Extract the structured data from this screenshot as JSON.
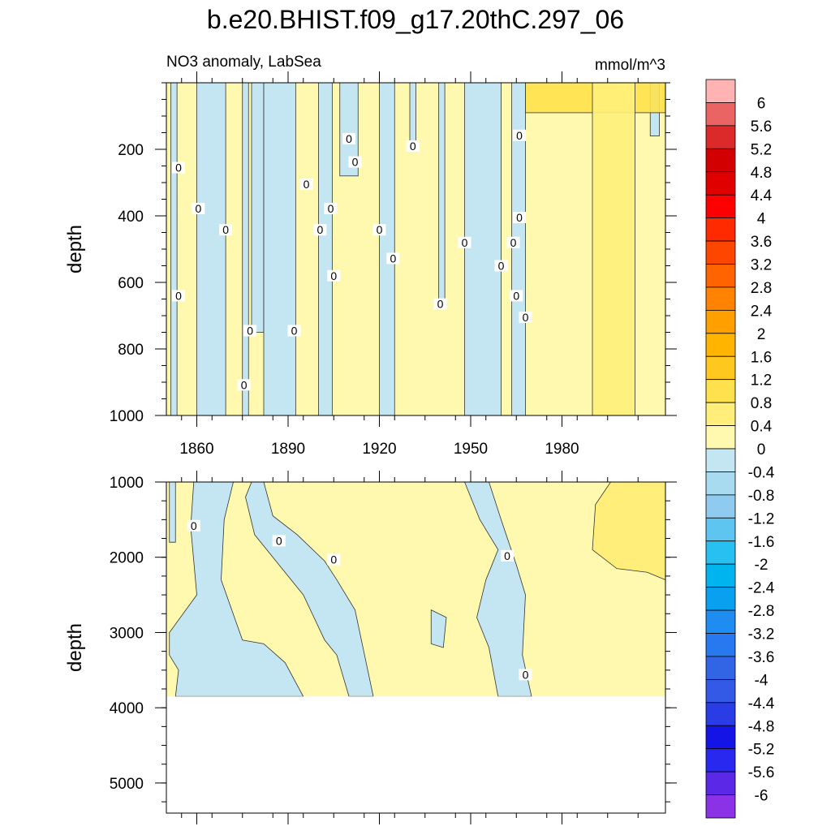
{
  "chart_data": {
    "type": "contour",
    "title": "b.e20.BHIST.f09_g17.20thC.297_06",
    "subtitle_left": "NO3 anomaly, LabSea",
    "units": "mmol/m^3",
    "colors": {
      "positive_low": "#fff9b0",
      "positive_mid": "#ffef7a",
      "positive_high": "#ffe14d",
      "negative_low": "#c4e6f2",
      "background": "#ffffff",
      "line": "#333333"
    },
    "panels": [
      {
        "name": "upper",
        "ylabel": "depth",
        "xlim": [
          1850,
          2014
        ],
        "ylim": [
          0,
          1000
        ],
        "yticks": [
          200,
          400,
          600,
          800,
          1000
        ],
        "xticks": [
          1860,
          1890,
          1920,
          1950,
          1980
        ],
        "xtick_labels": [
          "1860",
          "1890",
          "1920",
          "1950",
          "1980"
        ],
        "negative_regions": [
          {
            "x0": 1851.5,
            "x1": 1853.5,
            "ymax": 1000
          },
          {
            "x0": 1860,
            "x1": 1869.5,
            "ymax": 1000
          },
          {
            "x0": 1875,
            "x1": 1877,
            "ymax": 1000
          },
          {
            "x0": 1878,
            "x1": 1882,
            "ymax": 750
          },
          {
            "x0": 1882,
            "x1": 1892.5,
            "ymax": 1000
          },
          {
            "x0": 1900,
            "x1": 1904.5,
            "ymax": 1000
          },
          {
            "x0": 1907,
            "x1": 1913,
            "ymax": 280
          },
          {
            "x0": 1920,
            "x1": 1925,
            "ymax": 1000
          },
          {
            "x0": 1930,
            "x1": 1932,
            "ymax": 180
          },
          {
            "x0": 1939.5,
            "x1": 1941.5,
            "ymax": 680
          },
          {
            "x0": 1948,
            "x1": 1960,
            "ymax": 1000
          },
          {
            "x0": 1963.5,
            "x1": 1968,
            "ymax": 1000
          },
          {
            "x0": 2009,
            "x1": 2012,
            "ymax": 160
          }
        ],
        "positive_regions": [
          {
            "x0": 1968,
            "x1": 2014,
            "ymin": 0,
            "ymax": 90,
            "level": 0.8
          },
          {
            "x0": 1990,
            "x1": 2004,
            "ymin": 0,
            "ymax": 1000,
            "level": 0.4
          }
        ],
        "contour_labels": [
          {
            "x": 1854,
            "y": 255,
            "text": "0"
          },
          {
            "x": 1860.5,
            "y": 378,
            "text": "0"
          },
          {
            "x": 1854,
            "y": 640,
            "text": "0"
          },
          {
            "x": 1869.5,
            "y": 442,
            "text": "0"
          },
          {
            "x": 1877.5,
            "y": 745,
            "text": "0"
          },
          {
            "x": 1875.5,
            "y": 908,
            "text": "0"
          },
          {
            "x": 1892,
            "y": 745,
            "text": "0"
          },
          {
            "x": 1896,
            "y": 305,
            "text": "0"
          },
          {
            "x": 1900.5,
            "y": 442,
            "text": "0"
          },
          {
            "x": 1904,
            "y": 378,
            "text": "0"
          },
          {
            "x": 1905,
            "y": 580,
            "text": "0"
          },
          {
            "x": 1910,
            "y": 168,
            "text": "0"
          },
          {
            "x": 1912,
            "y": 238,
            "text": "0"
          },
          {
            "x": 1920,
            "y": 442,
            "text": "0"
          },
          {
            "x": 1924.5,
            "y": 528,
            "text": "0"
          },
          {
            "x": 1931,
            "y": 190,
            "text": "0"
          },
          {
            "x": 1940,
            "y": 665,
            "text": "0"
          },
          {
            "x": 1948,
            "y": 480,
            "text": "0"
          },
          {
            "x": 1960,
            "y": 550,
            "text": "0"
          },
          {
            "x": 1964,
            "y": 480,
            "text": "0"
          },
          {
            "x": 1966,
            "y": 158,
            "text": "0"
          },
          {
            "x": 1966,
            "y": 405,
            "text": "0"
          },
          {
            "x": 1965,
            "y": 640,
            "text": "0"
          },
          {
            "x": 1968,
            "y": 705,
            "text": "0"
          }
        ]
      },
      {
        "name": "lower",
        "ylabel": "depth",
        "xlim": [
          1850,
          2014
        ],
        "ylim": [
          1000,
          5400
        ],
        "data_max_depth": 3850,
        "yticks": [
          1000,
          2000,
          3000,
          4000,
          5000
        ],
        "xticks": [
          1860,
          1890,
          1920,
          1950,
          1980
        ],
        "negative_regions": [
          {
            "points": [
              [
                1851,
                1000
              ],
              [
                1853,
                1000
              ],
              [
                1853,
                1800
              ],
              [
                1851,
                1800
              ]
            ]
          },
          {
            "points": [
              [
                1859,
                1000
              ],
              [
                1872,
                1000
              ],
              [
                1869,
                1500
              ],
              [
                1868,
                2300
              ],
              [
                1875,
                3100
              ],
              [
                1882,
                3150
              ],
              [
                1889,
                3400
              ],
              [
                1895,
                3850
              ],
              [
                1853,
                3850
              ],
              [
                1854,
                3500
              ],
              [
                1851,
                3300
              ],
              [
                1851,
                3000
              ],
              [
                1860,
                2500
              ],
              [
                1858,
                1600
              ]
            ]
          },
          {
            "points": [
              [
                1878,
                1000
              ],
              [
                1882,
                1000
              ],
              [
                1885,
                1450
              ],
              [
                1893,
                1700
              ],
              [
                1902,
                2050
              ],
              [
                1906,
                2300
              ],
              [
                1912,
                2700
              ],
              [
                1918,
                3850
              ],
              [
                1910,
                3850
              ],
              [
                1906,
                3300
              ],
              [
                1902,
                3100
              ],
              [
                1895,
                2500
              ],
              [
                1886,
                2050
              ],
              [
                1879,
                1700
              ],
              [
                1876,
                1200
              ]
            ]
          },
          {
            "points": [
              [
                1937,
                2700
              ],
              [
                1942,
                2800
              ],
              [
                1941,
                3200
              ],
              [
                1937,
                3150
              ]
            ]
          },
          {
            "points": [
              [
                1948,
                1000
              ],
              [
                1956,
                1000
              ],
              [
                1960,
                1500
              ],
              [
                1965,
                2100
              ],
              [
                1968,
                2500
              ],
              [
                1967,
                3300
              ],
              [
                1970,
                3850
              ],
              [
                1959,
                3850
              ],
              [
                1956,
                3200
              ],
              [
                1952,
                2800
              ],
              [
                1955,
                2300
              ],
              [
                1959,
                1900
              ],
              [
                1953,
                1500
              ]
            ]
          }
        ],
        "positive_regions": [
          {
            "points": [
              [
                1996,
                1000
              ],
              [
                2014,
                1000
              ],
              [
                2014,
                2300
              ],
              [
                2008,
                2200
              ],
              [
                1998,
                2150
              ],
              [
                1990,
                1900
              ],
              [
                1991,
                1300
              ]
            ],
            "level": 0.4
          }
        ],
        "contour_labels": [
          {
            "x": 1859,
            "y": 1580,
            "text": "0"
          },
          {
            "x": 1887,
            "y": 1780,
            "text": "0"
          },
          {
            "x": 1905,
            "y": 2030,
            "text": "0"
          },
          {
            "x": 1962,
            "y": 1980,
            "text": "0"
          },
          {
            "x": 1968,
            "y": 3560,
            "text": "0"
          }
        ]
      }
    ],
    "colorbar": {
      "levels": [
        "6",
        "5.6",
        "5.2",
        "4.8",
        "4.4",
        "4",
        "3.6",
        "3.2",
        "2.8",
        "2.4",
        "2",
        "1.6",
        "1.2",
        "0.8",
        "0.4",
        "0",
        "-0.4",
        "-0.8",
        "-1.2",
        "-1.6",
        "-2",
        "-2.4",
        "-2.8",
        "-3.2",
        "-3.6",
        "-4",
        "-4.4",
        "-4.8",
        "-5.2",
        "-5.6",
        "-6"
      ],
      "colors": [
        "#ffb3b3",
        "#eb6464",
        "#dc2a2a",
        "#d20000",
        "#e10000",
        "#ff0000",
        "#ff2a00",
        "#ff4600",
        "#ff6400",
        "#ff8200",
        "#ffa000",
        "#ffb400",
        "#ffc81e",
        "#ffe14d",
        "#ffef7a",
        "#fff9b0",
        "#c4e6f2",
        "#a8daf0",
        "#8ecbee",
        "#5ec4f0",
        "#28c0f0",
        "#00b4f0",
        "#0aa0f0",
        "#1e8cf0",
        "#2878f0",
        "#3264e6",
        "#325ae6",
        "#2a3ce6",
        "#1414e6",
        "#2828f0",
        "#5a28e6",
        "#8c32e6"
      ]
    }
  }
}
